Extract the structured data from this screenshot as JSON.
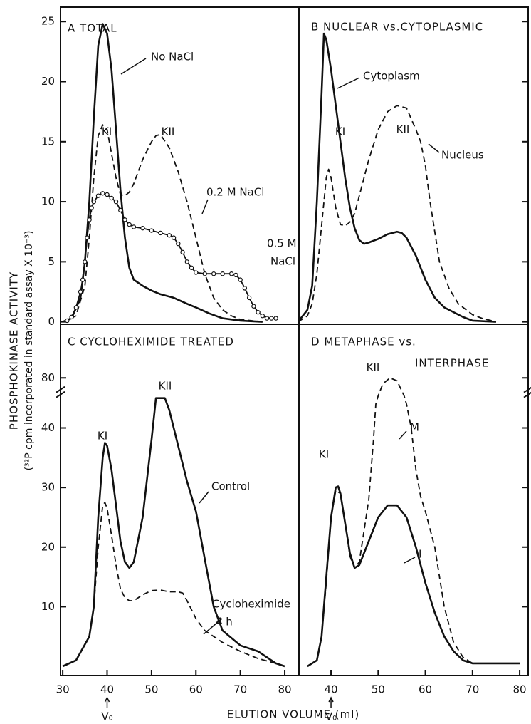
{
  "figure": {
    "ylabel": [
      "PHOSPHOKINASE ACTIVITY",
      "(³²P cpm incorporated in standard assay X 10⁻³)"
    ],
    "xlabel": "ELUTION VOLUME (ml)",
    "v0": "V₀"
  },
  "chart_data": [
    {
      "type": "line",
      "title": [
        "A  TOTAL"
      ],
      "xlim": [
        29.5,
        83.2
      ],
      "ylim": [
        -0.2,
        26.2
      ],
      "yticks": [
        0,
        5,
        10,
        15,
        20,
        25
      ],
      "ytick_side": "left",
      "annotations": [
        "KI",
        "KII"
      ],
      "series": [
        {
          "label": [
            "No NaCl"
          ],
          "color": "#111111",
          "style": "solid",
          "x": [
            30,
            32,
            34,
            35,
            36,
            37,
            38,
            39,
            40,
            41,
            42,
            43,
            44,
            45,
            46,
            48,
            50,
            52,
            55,
            58,
            60,
            63,
            66,
            70,
            75
          ],
          "values": [
            0,
            0.3,
            2,
            5,
            10,
            17,
            23,
            24.8,
            24,
            21,
            16,
            11,
            7,
            4.5,
            3.5,
            3,
            2.6,
            2.3,
            2,
            1.5,
            1.2,
            0.7,
            0.3,
            0.1,
            0
          ]
        },
        {
          "label": [
            "0.2 M NaCl"
          ],
          "color": "#111111",
          "style": "dashed",
          "x": [
            30,
            33,
            35,
            36,
            37,
            38,
            39,
            40,
            41,
            42,
            43,
            44,
            45,
            46,
            48,
            50,
            51,
            52,
            54,
            56,
            58,
            60,
            62,
            64,
            66,
            68,
            70,
            75
          ],
          "values": [
            0,
            0.5,
            3,
            7,
            12,
            15.5,
            16.4,
            16,
            14,
            12,
            10.6,
            10.5,
            10.8,
            11.5,
            13.5,
            15,
            15.5,
            15.6,
            14.5,
            12.5,
            10,
            7,
            4,
            2,
            1,
            0.5,
            0.2,
            0
          ]
        },
        {
          "label": [
            "0.5 M",
            "NaCl"
          ],
          "color": "#111111",
          "style": "circles",
          "x": [
            31,
            32,
            33,
            34,
            34.5,
            35,
            35.5,
            36,
            36.5,
            37,
            38,
            39,
            40,
            41,
            42,
            43,
            44,
            45,
            46,
            48,
            50,
            52,
            54,
            55,
            56,
            57,
            58,
            59,
            60,
            62,
            64,
            66,
            68,
            69,
            70,
            71,
            72,
            73,
            74,
            75,
            76,
            77,
            78
          ],
          "values": [
            0.1,
            0.4,
            1.2,
            2.5,
            3.5,
            5,
            7,
            8.5,
            9.5,
            10,
            10.5,
            10.7,
            10.6,
            10.3,
            10,
            9.3,
            8.5,
            8.1,
            7.9,
            7.8,
            7.6,
            7.4,
            7.2,
            7,
            6.5,
            5.8,
            5,
            4.5,
            4.1,
            4,
            4,
            4,
            4,
            3.9,
            3.5,
            2.8,
            2,
            1.3,
            0.8,
            0.5,
            0.3,
            0.3,
            0.3
          ]
        }
      ]
    },
    {
      "type": "line",
      "title": [
        "B  NUCLEAR vs.CYTOPLASMIC"
      ],
      "xlim": [
        33.2,
        81.8
      ],
      "ylim": [
        -0.2,
        26.2
      ],
      "yticks": [
        0,
        5,
        10,
        15,
        20,
        25
      ],
      "ytick_side": "right",
      "annotations": [
        "KI",
        "KII"
      ],
      "series": [
        {
          "label": [
            "Cytoplasm"
          ],
          "color": "#111111",
          "style": "solid",
          "x": [
            33,
            35,
            36,
            37,
            38,
            38.5,
            39,
            40,
            41,
            42,
            43,
            44,
            45,
            46,
            47,
            48,
            50,
            52,
            54,
            55,
            56,
            58,
            60,
            62,
            64,
            66,
            68,
            70,
            75
          ],
          "values": [
            0,
            1,
            3,
            10,
            19,
            24,
            23.5,
            21,
            18,
            15,
            12,
            9.5,
            7.8,
            6.8,
            6.5,
            6.6,
            6.9,
            7.3,
            7.5,
            7.4,
            7,
            5.5,
            3.5,
            2,
            1.2,
            0.8,
            0.4,
            0.1,
            0
          ]
        },
        {
          "label": [
            "Nucleus"
          ],
          "color": "#111111",
          "style": "dashed",
          "x": [
            33,
            35,
            36,
            37,
            38,
            39,
            39.5,
            40,
            41,
            42,
            43,
            44,
            45,
            46,
            48,
            50,
            52,
            54,
            56,
            58,
            59,
            60,
            61,
            62,
            63,
            65,
            67,
            70,
            72,
            75
          ],
          "values": [
            0,
            0.5,
            1.5,
            4,
            8,
            12,
            12.7,
            12,
            9.5,
            8.1,
            8,
            8.3,
            9,
            10.5,
            13.5,
            16,
            17.5,
            18,
            17.8,
            16,
            15,
            13,
            10,
            7.5,
            5,
            2.8,
            1.5,
            0.6,
            0.3,
            0
          ]
        }
      ]
    },
    {
      "type": "line",
      "title": [
        "C  CYCLOHEXIMIDE TREATED"
      ],
      "xlim": [
        29.5,
        83.2
      ],
      "ylim": [
        -1.55,
        89
      ],
      "ybreak": [
        45,
        76.6
      ],
      "yticks": [
        10,
        20,
        30,
        40,
        80
      ],
      "ytick_side": "left",
      "xticks": [
        30,
        40,
        50,
        60,
        70,
        80
      ],
      "annotations": [
        "KI",
        "KII"
      ],
      "series": [
        {
          "label": [
            "Control"
          ],
          "color": "#111111",
          "style": "solid",
          "x": [
            30,
            33,
            36,
            37,
            38,
            39,
            39.5,
            40,
            41,
            42,
            43,
            44,
            45,
            46,
            48,
            50,
            51,
            52,
            53,
            54,
            56,
            58,
            60,
            62,
            64,
            66,
            70,
            74,
            76,
            78,
            80
          ],
          "values": [
            0,
            1,
            5,
            10,
            25,
            35,
            37.5,
            37,
            33,
            27,
            21,
            17.5,
            16.5,
            17.5,
            25,
            38,
            45,
            46.5,
            46,
            43,
            37,
            31,
            26,
            18,
            10,
            6,
            3.5,
            2.5,
            1.5,
            0.5,
            0
          ]
        },
        {
          "label": [
            "Cycloheximide",
            "4 h"
          ],
          "color": "#111111",
          "style": "dashed",
          "x": [
            30,
            33,
            36,
            37,
            38,
            39,
            39.5,
            40,
            41,
            42,
            43,
            44,
            45,
            46,
            48,
            50,
            52,
            54,
            56,
            57,
            58,
            60,
            62,
            64,
            66,
            70,
            74,
            78,
            80
          ],
          "values": [
            0,
            1,
            5,
            10,
            20,
            27,
            27.5,
            26.5,
            22,
            17,
            13,
            11.5,
            11,
            11,
            12,
            12.7,
            12.8,
            12.5,
            12.5,
            12.3,
            11,
            8,
            6,
            5,
            4,
            2.5,
            1.3,
            0.5,
            0
          ]
        }
      ]
    },
    {
      "type": "line",
      "title": [
        "D  METAPHASE vs.",
        "INTERPHASE"
      ],
      "xlim": [
        33.2,
        81.8
      ],
      "ylim": [
        -1.55,
        89
      ],
      "ybreak": [
        45,
        76.6
      ],
      "yticks": [
        10,
        20,
        30,
        40,
        80
      ],
      "ytick_side": "right",
      "xticks": [
        40,
        50,
        60,
        70,
        80
      ],
      "annotations": [
        "KI",
        "KII"
      ],
      "series": [
        {
          "label": [
            "I"
          ],
          "color": "#111111",
          "style": "solid",
          "x": [
            35,
            37,
            38,
            39,
            40,
            41,
            41.5,
            42,
            43,
            44,
            45,
            46,
            48,
            50,
            52,
            54,
            56,
            58,
            60,
            62,
            64,
            66,
            68,
            70,
            80
          ],
          "values": [
            0,
            1,
            5,
            15,
            25,
            30,
            30.2,
            29,
            24,
            19,
            16.5,
            17,
            21,
            25,
            27,
            27,
            25,
            20,
            14,
            9,
            5,
            2.5,
            1,
            0.5,
            0.5
          ]
        },
        {
          "label": [
            "M"
          ],
          "color": "#111111",
          "style": "dashed",
          "x": [
            35,
            37,
            38,
            39,
            40,
            41,
            42,
            43,
            44,
            45,
            46,
            48,
            49,
            49.5,
            50,
            51,
            52.5,
            54,
            55.5,
            56,
            57,
            58,
            59,
            60,
            62,
            64,
            66,
            68,
            70,
            80
          ],
          "values": [
            0,
            1,
            5,
            14,
            25,
            29.5,
            29,
            24,
            18.5,
            16.5,
            17.5,
            28,
            38,
            44,
            77,
            79,
            80,
            79.5,
            77,
            44,
            40,
            33,
            28.5,
            26,
            20,
            10,
            4,
            1.5,
            0.5,
            0.5
          ]
        }
      ]
    }
  ]
}
